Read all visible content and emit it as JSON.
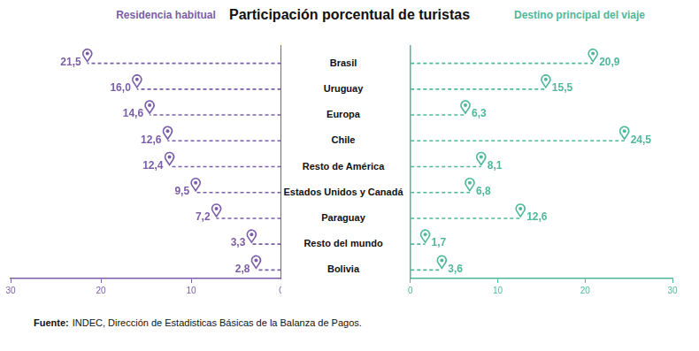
{
  "source_label": "Fuente:",
  "source": "INDEC, Dirección de Estadisticas Básicas de la Balanza de Pagos.",
  "chart_data": {
    "type": "bar",
    "title": "Participación porcentual de turistas",
    "orientation": "horizontal",
    "categories": [
      "Brasil",
      "Uruguay",
      "Europa",
      "Chile",
      "Resto de América",
      "Estados Unidos y Canadá",
      "Paraguay",
      "Resto del mundo",
      "Bolivia"
    ],
    "series": [
      {
        "name": "Residencia habitual",
        "color": "#7b5ea7",
        "line_style": "dashed",
        "marker": "pin",
        "values": [
          21.5,
          16.0,
          14.6,
          12.6,
          12.4,
          9.5,
          7.2,
          3.3,
          2.8
        ],
        "value_labels": [
          "21,5",
          "16,0",
          "14,6",
          "12,6",
          "12,4",
          "9,5",
          "7,2",
          "3,3",
          "2,8"
        ]
      },
      {
        "name": "Destino principal del viaje",
        "color": "#4fb89a",
        "line_style": "dashed",
        "marker": "pin",
        "values": [
          20.9,
          15.5,
          6.3,
          24.5,
          8.1,
          6.8,
          12.6,
          1.7,
          3.6
        ],
        "value_labels": [
          "20,9",
          "15,5",
          "6,3",
          "24,5",
          "8,1",
          "6,8",
          "12,6",
          "1,7",
          "3,6"
        ]
      }
    ],
    "xlim": [
      0,
      30
    ],
    "xticks": [
      0,
      10,
      20,
      30
    ],
    "data_labels": true,
    "grid": false
  }
}
